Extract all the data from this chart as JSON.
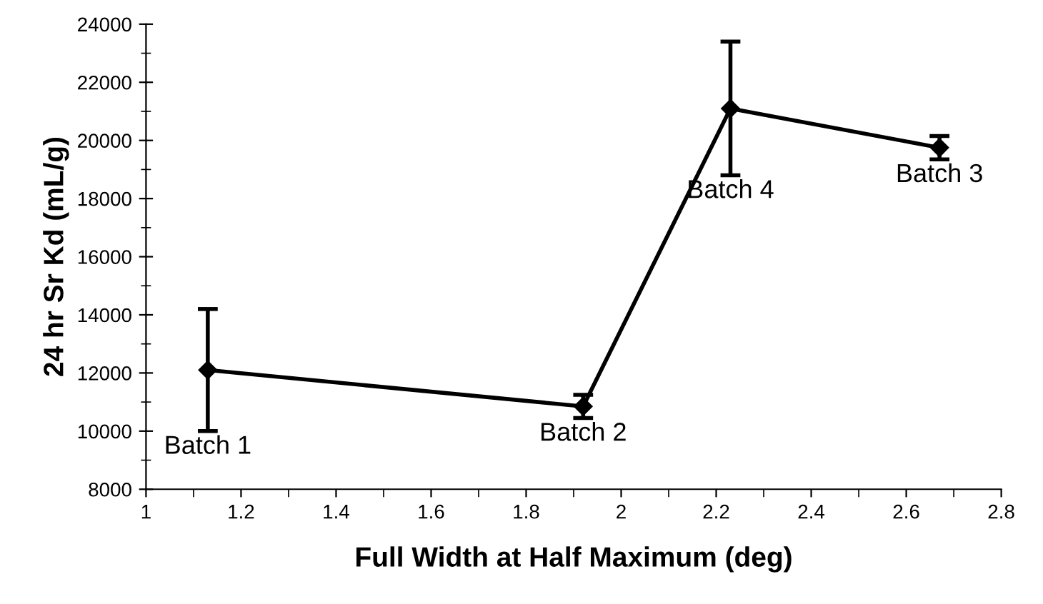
{
  "chart_data": {
    "type": "line",
    "xlabel": "Full Width at Half Maximum (deg)",
    "ylabel": "24 hr Sr Kd (mL/g)",
    "x": [
      1.13,
      1.92,
      2.23,
      2.67
    ],
    "series": [
      {
        "color": "#000000",
        "values": [
          12100,
          10850,
          21100,
          19750
        ],
        "errors": [
          2100,
          400,
          2300,
          400
        ]
      }
    ],
    "marker": "diamond",
    "line_style": "solid",
    "grid": false,
    "legend": false,
    "xlim": [
      1,
      2.8
    ],
    "xticks": [
      1,
      1.2,
      1.4,
      1.6,
      1.8,
      2,
      2.2,
      2.4,
      2.6,
      2.8
    ],
    "ylim": [
      8000,
      24000
    ],
    "yticks": [
      8000,
      10000,
      12000,
      14000,
      16000,
      18000,
      20000,
      22000,
      24000
    ],
    "annotations": [
      {
        "text": "Batch 1",
        "x": 1.13,
        "y": 10000
      },
      {
        "text": "Batch 2",
        "x": 1.92,
        "y": 10450
      },
      {
        "text": "Batch 4",
        "x": 2.23,
        "y": 18800
      },
      {
        "text": "Batch 3",
        "x": 2.67,
        "y": 19350
      }
    ]
  }
}
